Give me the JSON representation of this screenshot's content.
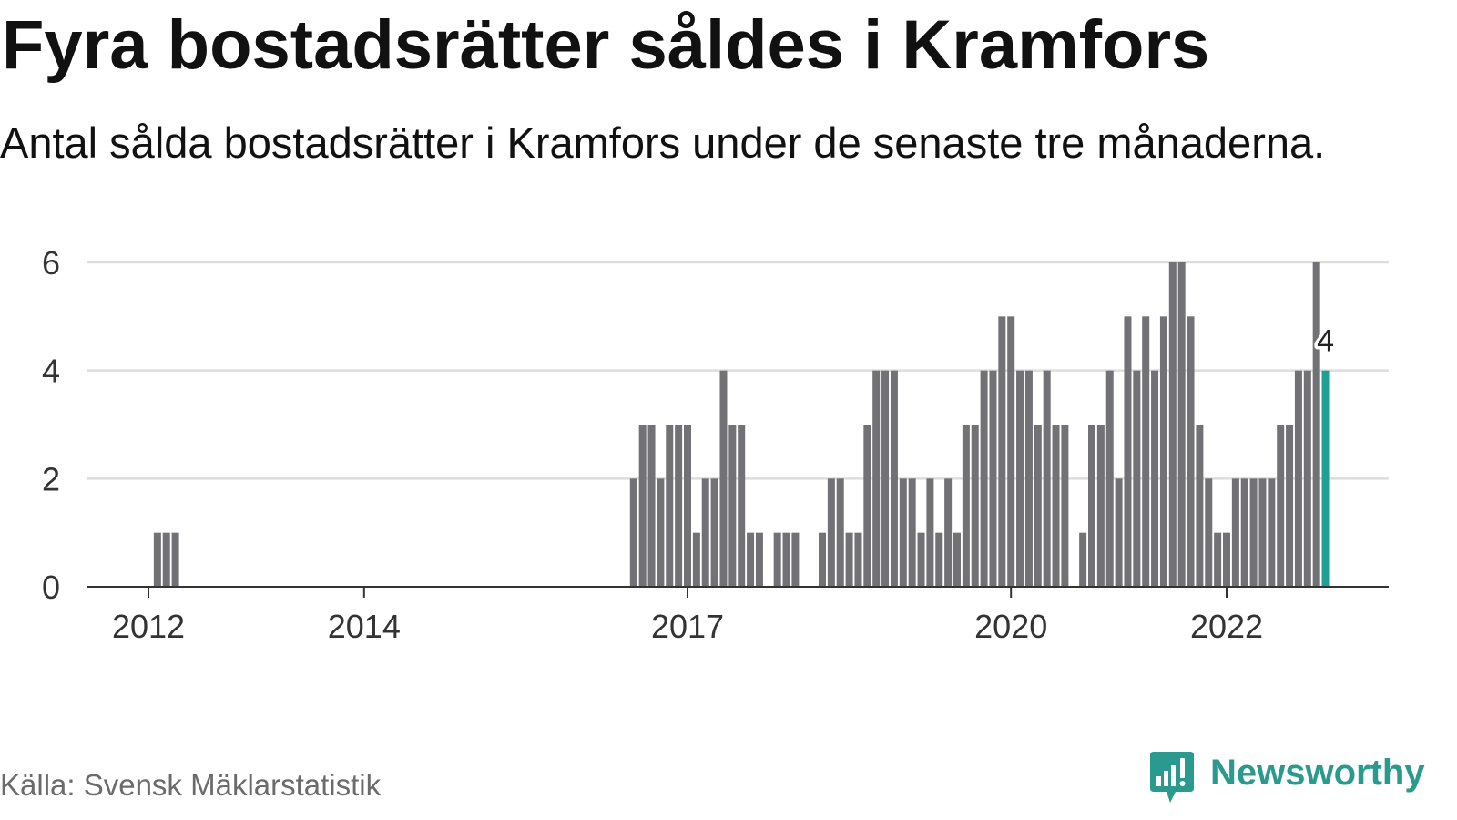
{
  "chart_data": {
    "type": "bar",
    "title": "Fyra bostadsrätter såldes i Kramfors",
    "subtitle": "Antal sålda bostadsrätter i Kramfors under de senaste tre månaderna.",
    "x_ticks": [
      "2012",
      "2014",
      "2017",
      "2020",
      "2022"
    ],
    "y_ticks": [
      0,
      2,
      4,
      6
    ],
    "ylim": [
      0,
      6
    ],
    "grid": true,
    "bar_color": "#717176",
    "highlight": {
      "x": "2022-12",
      "color": "#1ea094"
    },
    "data_labels": [
      {
        "x": "2022-12",
        "text": "4"
      }
    ],
    "x": [
      "2012-02",
      "2012-03",
      "2012-04",
      "2012-05",
      "2012-06",
      "2012-07",
      "2012-08",
      "2012-09",
      "2012-10",
      "2012-11",
      "2012-12",
      "2013-01",
      "2013-02",
      "2013-03",
      "2013-04",
      "2013-05",
      "2013-06",
      "2013-07",
      "2013-08",
      "2013-09",
      "2013-10",
      "2013-11",
      "2013-12",
      "2014-01",
      "2014-02",
      "2014-03",
      "2014-04",
      "2014-05",
      "2014-06",
      "2014-07",
      "2014-08",
      "2014-09",
      "2014-10",
      "2014-11",
      "2014-12",
      "2015-01",
      "2015-02",
      "2015-03",
      "2015-04",
      "2015-05",
      "2015-06",
      "2015-07",
      "2015-08",
      "2015-09",
      "2015-10",
      "2015-11",
      "2015-12",
      "2016-01",
      "2016-02",
      "2016-03",
      "2016-04",
      "2016-05",
      "2016-06",
      "2016-07",
      "2016-08",
      "2016-09",
      "2016-10",
      "2016-11",
      "2016-12",
      "2017-01",
      "2017-02",
      "2017-03",
      "2017-04",
      "2017-05",
      "2017-06",
      "2017-07",
      "2017-08",
      "2017-09",
      "2017-10",
      "2017-11",
      "2017-12",
      "2018-01",
      "2018-02",
      "2018-03",
      "2018-04",
      "2018-05",
      "2018-06",
      "2018-07",
      "2018-08",
      "2018-09",
      "2018-10",
      "2018-11",
      "2018-12",
      "2019-01",
      "2019-02",
      "2019-03",
      "2019-04",
      "2019-05",
      "2019-06",
      "2019-07",
      "2019-08",
      "2019-09",
      "2019-10",
      "2019-11",
      "2019-12",
      "2020-01",
      "2020-02",
      "2020-03",
      "2020-04",
      "2020-05",
      "2020-06",
      "2020-07",
      "2020-08",
      "2020-09",
      "2020-10",
      "2020-11",
      "2020-12",
      "2021-01",
      "2021-02",
      "2021-03",
      "2021-04",
      "2021-05",
      "2021-06",
      "2021-07",
      "2021-08",
      "2021-09",
      "2021-10",
      "2021-11",
      "2021-12",
      "2022-01",
      "2022-02",
      "2022-03",
      "2022-04",
      "2022-05",
      "2022-06",
      "2022-07",
      "2022-08",
      "2022-09",
      "2022-10",
      "2022-11",
      "2022-12"
    ],
    "values": [
      1,
      1,
      1,
      0,
      0,
      0,
      0,
      0,
      0,
      0,
      0,
      0,
      0,
      0,
      0,
      0,
      0,
      0,
      0,
      0,
      0,
      0,
      0,
      0,
      0,
      0,
      0,
      0,
      0,
      0,
      0,
      0,
      0,
      0,
      0,
      0,
      0,
      0,
      0,
      0,
      0,
      0,
      0,
      0,
      0,
      0,
      0,
      0,
      0,
      0,
      0,
      0,
      0,
      2,
      3,
      3,
      2,
      3,
      3,
      3,
      1,
      2,
      2,
      4,
      3,
      3,
      1,
      1,
      0,
      1,
      1,
      1,
      0,
      0,
      1,
      2,
      2,
      1,
      1,
      3,
      4,
      4,
      4,
      2,
      2,
      1,
      2,
      1,
      2,
      1,
      3,
      3,
      4,
      4,
      5,
      5,
      4,
      4,
      3,
      4,
      3,
      3,
      0,
      1,
      3,
      3,
      4,
      2,
      5,
      4,
      5,
      4,
      5,
      6,
      6,
      5,
      3,
      2,
      1,
      1,
      2,
      2,
      2,
      2,
      2,
      3,
      3,
      4,
      4,
      6,
      4
    ]
  },
  "source": "Källa: Svensk Mäklarstatistik",
  "logo": {
    "text": "Newsworthy",
    "icon": "newsworthy-chart-bubble-icon",
    "color": "#2a9a8e"
  },
  "colors": {
    "gridline": "#dddddd",
    "axis": "#333333",
    "text": "#111111"
  }
}
